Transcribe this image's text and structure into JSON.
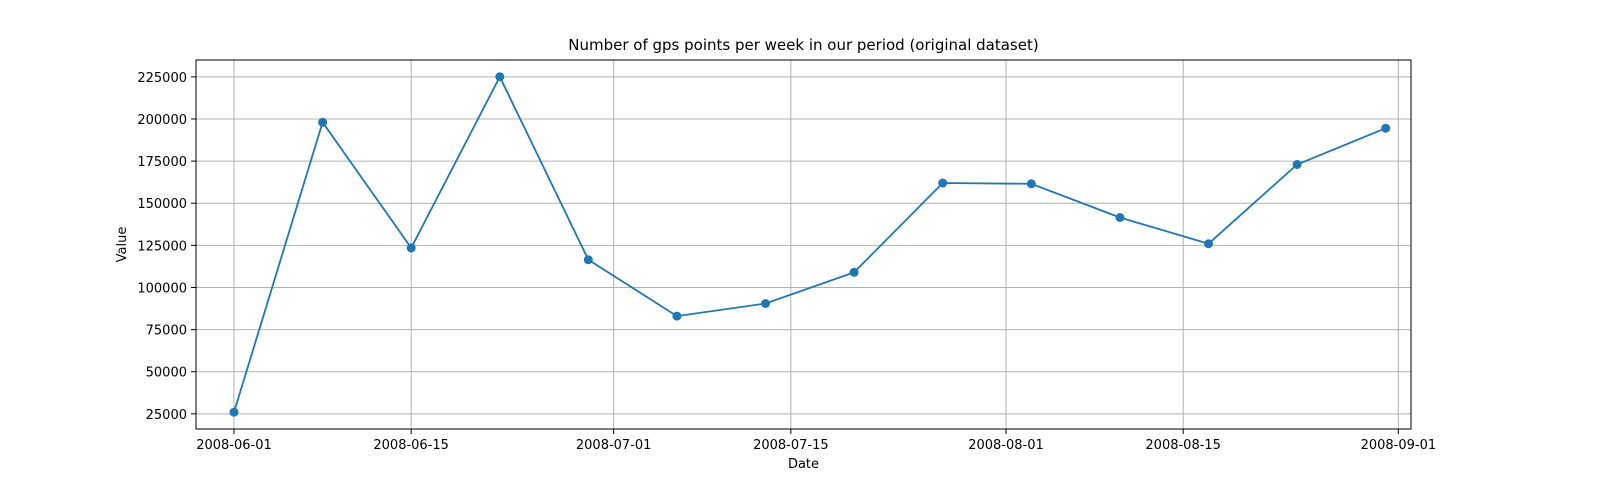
{
  "chart_data": {
    "type": "line",
    "title": "Number of gps points per week in our period (original dataset)",
    "xlabel": "Date",
    "ylabel": "Value",
    "x": [
      "2008-06-01",
      "2008-06-08",
      "2008-06-15",
      "2008-06-22",
      "2008-06-29",
      "2008-07-06",
      "2008-07-13",
      "2008-07-20",
      "2008-07-27",
      "2008-08-03",
      "2008-08-10",
      "2008-08-17",
      "2008-08-24",
      "2008-08-31"
    ],
    "series": [
      {
        "values": [
          26000,
          198000,
          123500,
          225000,
          116500,
          83000,
          90500,
          109000,
          162000,
          161500,
          141500,
          126000,
          173000,
          194500
        ],
        "color": "#1f77b4",
        "marker": "circle"
      }
    ],
    "xlim": [
      "2008-05-29",
      "2008-09-02"
    ],
    "ylim": [
      16000,
      235000
    ],
    "x_ticks": [
      "2008-06-01",
      "2008-06-15",
      "2008-07-01",
      "2008-07-15",
      "2008-08-01",
      "2008-08-15",
      "2008-09-01"
    ],
    "y_ticks": [
      25000,
      50000,
      75000,
      100000,
      125000,
      150000,
      175000,
      200000,
      225000
    ],
    "grid": true,
    "legend": null
  }
}
